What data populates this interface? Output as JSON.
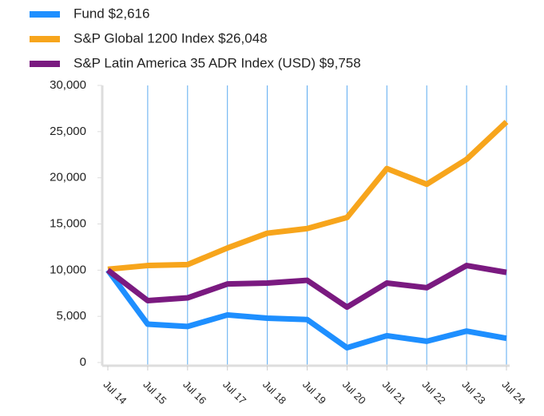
{
  "chart_data": {
    "type": "line",
    "categories": [
      "Jul 14",
      "Jul 15",
      "Jul 16",
      "Jul 17",
      "Jul 18",
      "Jul 19",
      "Jul 20",
      "Jul 21",
      "Jul 22",
      "Jul 23",
      "Jul 24"
    ],
    "series": [
      {
        "name": "Fund $2,616",
        "color": "#1e8fff",
        "values": [
          10000,
          4150,
          3900,
          5150,
          4800,
          4650,
          1600,
          2900,
          2300,
          3400,
          2616
        ]
      },
      {
        "name": "S&P Global 1200 Index $26,048",
        "color": "#f7a51c",
        "values": [
          10100,
          10500,
          10600,
          12400,
          14000,
          14500,
          15700,
          21000,
          19300,
          22000,
          26048
        ]
      },
      {
        "name": "S&P Latin America 35 ADR Index (USD) $9,758",
        "color": "#7a1a80",
        "values": [
          10000,
          6700,
          7000,
          8500,
          8600,
          8900,
          6000,
          8600,
          8100,
          10500,
          9758
        ]
      }
    ],
    "ylim": [
      0,
      30000
    ],
    "yticks": [
      0,
      {
        "value": 5000,
        "label": "5,000"
      },
      {
        "value": 10000,
        "label": "10,000"
      },
      {
        "value": 15000,
        "label": "15,000"
      },
      {
        "value": 20000,
        "label": "20,000"
      },
      {
        "value": 25000,
        "label": "25,000"
      },
      {
        "value": 30000,
        "label": "30,000"
      }
    ],
    "grid": true,
    "grid_color": "#5aaaf0",
    "legend": "top"
  }
}
